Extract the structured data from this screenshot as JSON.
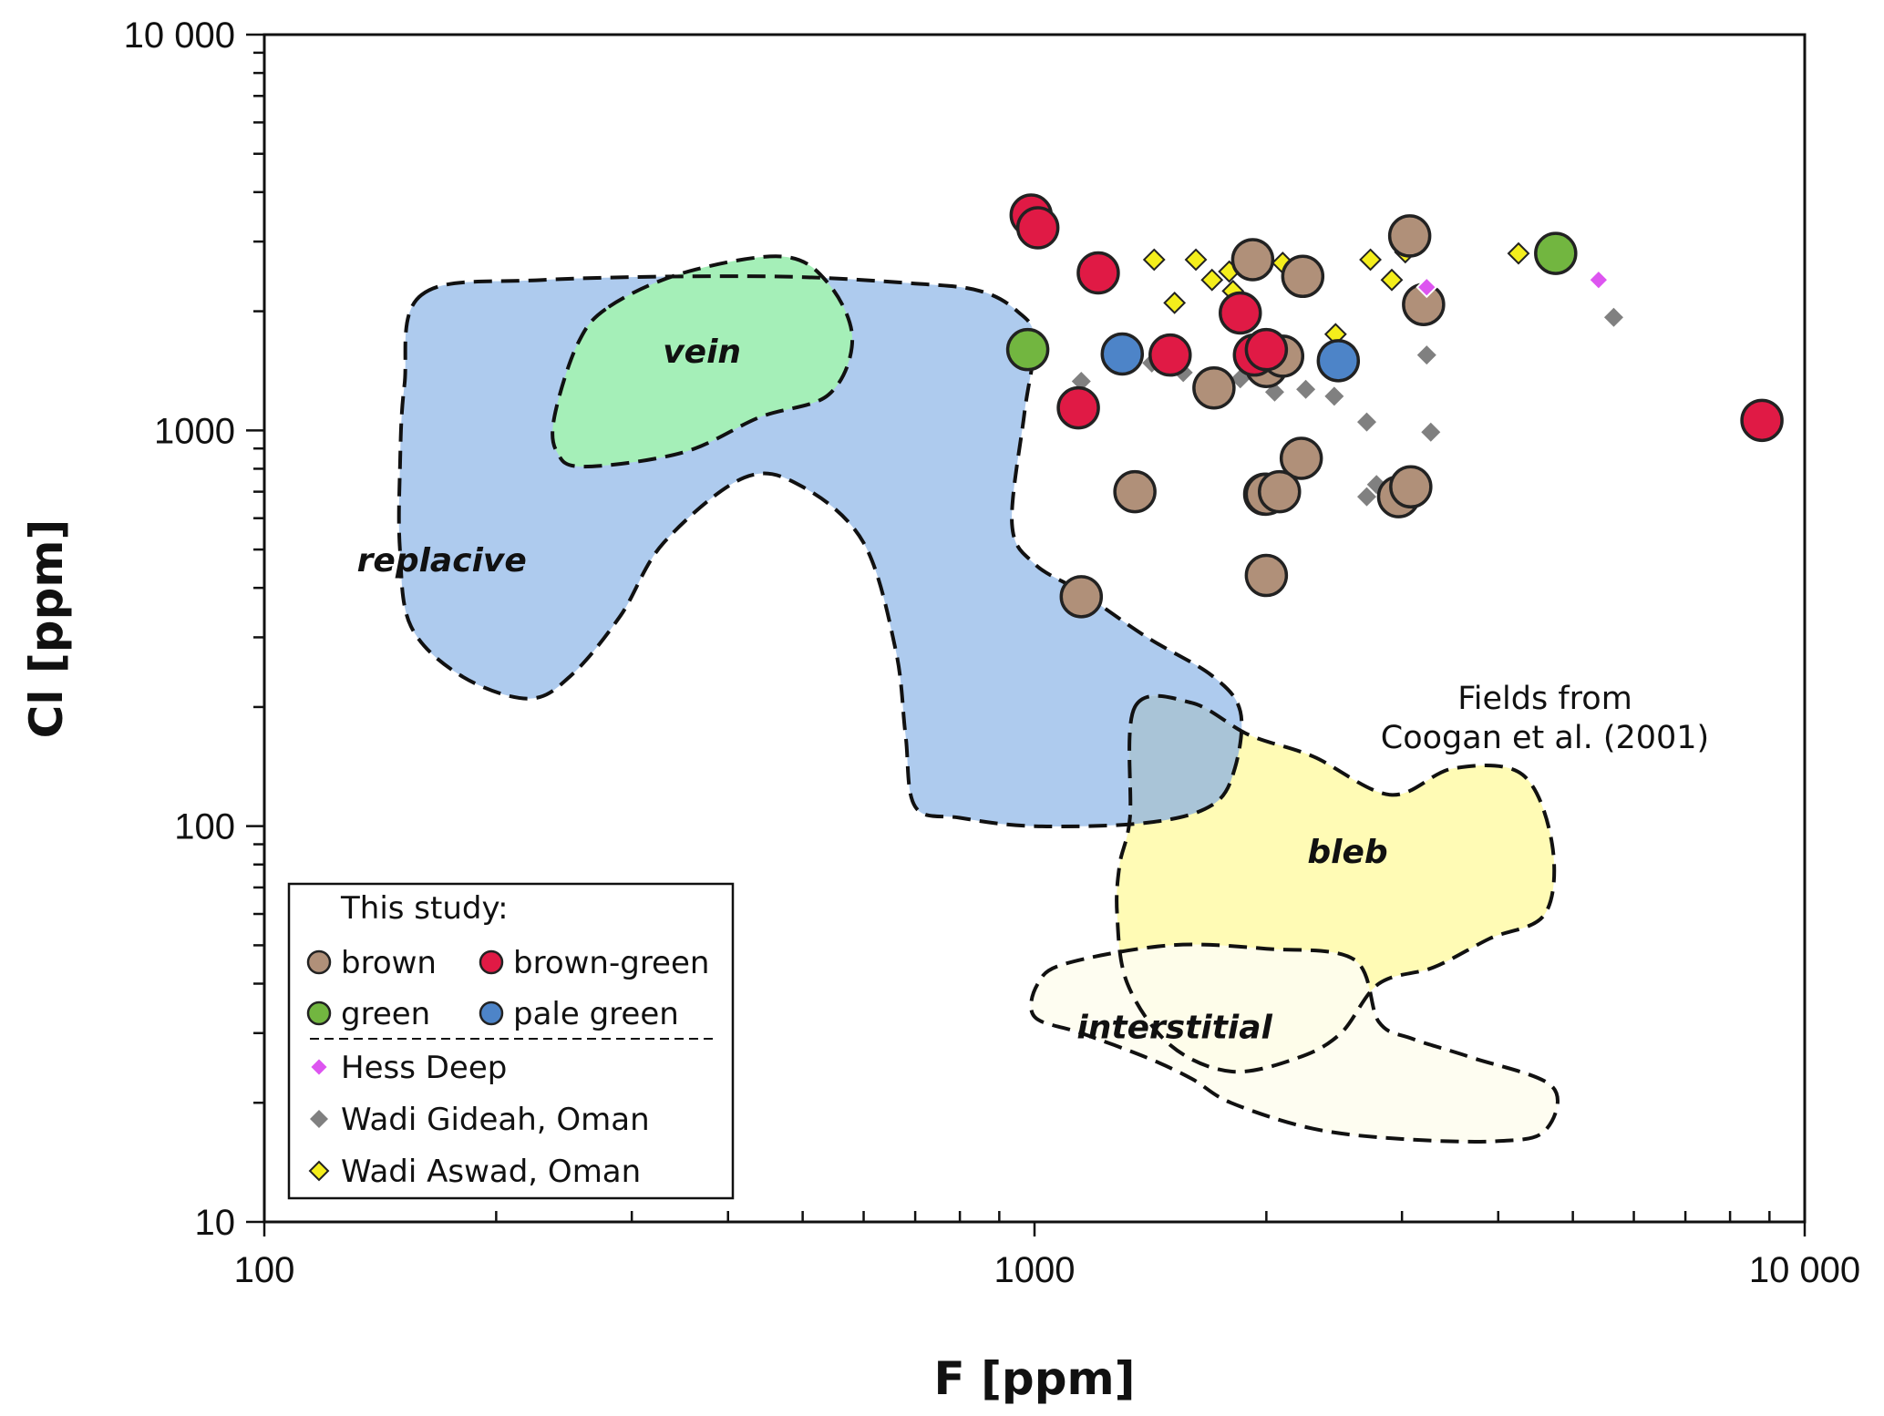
{
  "chart_data": {
    "type": "scatter",
    "xlabel": "F [ppm]",
    "ylabel": "Cl [ppm]",
    "xscale": "log",
    "yscale": "log",
    "xlim": [
      100,
      10000
    ],
    "ylim": [
      10,
      10000
    ],
    "xticks": [
      {
        "value": 100,
        "label": "100"
      },
      {
        "value": 1000,
        "label": "1000"
      },
      {
        "value": 10000,
        "label": "10 000"
      }
    ],
    "yticks": [
      {
        "value": 10,
        "label": "10"
      },
      {
        "value": 100,
        "label": "100"
      },
      {
        "value": 1000,
        "label": "1000"
      },
      {
        "value": 10000,
        "label": "10 000"
      }
    ],
    "grid": false,
    "legend_position": "bottom-left",
    "annotation": [
      "Fields from",
      "Coogan et al. (2001)"
    ],
    "fields": [
      {
        "name": "replacive",
        "fill": "#aecbee",
        "label_at": [
          170,
          470
        ],
        "outline": [
          [
            160,
            2200
          ],
          [
            230,
            2400
          ],
          [
            450,
            2450
          ],
          [
            700,
            2350
          ],
          [
            850,
            2250
          ],
          [
            950,
            2000
          ],
          [
            1000,
            1700
          ],
          [
            970,
            1100
          ],
          [
            935,
            580
          ],
          [
            1000,
            460
          ],
          [
            1150,
            390
          ],
          [
            1400,
            300
          ],
          [
            1700,
            240
          ],
          [
            1850,
            195
          ],
          [
            1820,
            140
          ],
          [
            1700,
            113
          ],
          [
            1400,
            102
          ],
          [
            1000,
            100
          ],
          [
            800,
            105
          ],
          [
            700,
            112
          ],
          [
            680,
            170
          ],
          [
            660,
            280
          ],
          [
            600,
            520
          ],
          [
            500,
            720
          ],
          [
            420,
            760
          ],
          [
            330,
            520
          ],
          [
            290,
            340
          ],
          [
            250,
            240
          ],
          [
            220,
            210
          ],
          [
            180,
            240
          ],
          [
            155,
            320
          ],
          [
            150,
            500
          ],
          [
            150,
            800
          ],
          [
            152,
            1300
          ]
        ]
      },
      {
        "name": "vein",
        "fill": "#a5efb8",
        "label_at": [
          370,
          1580
        ],
        "outline": [
          [
            280,
            2050
          ],
          [
            350,
            2500
          ],
          [
            470,
            2750
          ],
          [
            540,
            2350
          ],
          [
            580,
            1700
          ],
          [
            540,
            1230
          ],
          [
            440,
            1080
          ],
          [
            350,
            880
          ],
          [
            260,
            810
          ],
          [
            240,
            880
          ],
          [
            238,
            1080
          ],
          [
            255,
            1650
          ]
        ]
      },
      {
        "name": "bleb",
        "fill": "#fffbb5",
        "label_at": [
          2550,
          86
        ],
        "outline": [
          [
            1350,
            200
          ],
          [
            1600,
            205
          ],
          [
            1900,
            170
          ],
          [
            2300,
            150
          ],
          [
            2900,
            120
          ],
          [
            3500,
            140
          ],
          [
            4300,
            135
          ],
          [
            4700,
            90
          ],
          [
            4600,
            60
          ],
          [
            3900,
            52
          ],
          [
            3300,
            44
          ],
          [
            2800,
            40
          ],
          [
            2500,
            30
          ],
          [
            2200,
            26
          ],
          [
            1800,
            24
          ],
          [
            1500,
            28
          ],
          [
            1320,
            40
          ],
          [
            1280,
            60
          ],
          [
            1290,
            80
          ],
          [
            1330,
            105
          ]
        ]
      },
      {
        "name": "interstitial",
        "fill": "#fefdf0",
        "label_at": [
          1520,
          31
        ],
        "outline": [
          [
            1100,
            45
          ],
          [
            1500,
            50
          ],
          [
            2000,
            49
          ],
          [
            2600,
            46
          ],
          [
            2800,
            32
          ],
          [
            3100,
            29
          ],
          [
            3700,
            26
          ],
          [
            4700,
            22
          ],
          [
            4600,
            17
          ],
          [
            4000,
            16
          ],
          [
            3000,
            16.2
          ],
          [
            2300,
            17.2
          ],
          [
            1800,
            20
          ],
          [
            1600,
            23
          ],
          [
            1400,
            26
          ],
          [
            1150,
            30
          ],
          [
            1000,
            33
          ],
          [
            1010,
            40
          ]
        ]
      }
    ],
    "series": [
      {
        "name": "brown",
        "marker": "circle",
        "color": "#b09079",
        "x": [
          1920,
          2230,
          1710,
          2000,
          2100,
          1990,
          2220,
          1350,
          2000,
          2080,
          2970,
          3080,
          3070,
          3200,
          1150,
          2000
        ],
        "y": [
          2700,
          2450,
          1280,
          1450,
          1540,
          690,
          850,
          700,
          690,
          700,
          680,
          720,
          3100,
          2080,
          380,
          430
        ]
      },
      {
        "name": "brown-green",
        "marker": "circle",
        "color": "#e01a45",
        "x": [
          990,
          1010,
          1210,
          1500,
          1850,
          1930,
          2000,
          1140,
          8800
        ],
        "y": [
          3500,
          3250,
          2500,
          1550,
          1980,
          1550,
          1600,
          1140,
          1060
        ]
      },
      {
        "name": "green",
        "marker": "circle",
        "color": "#72b640",
        "x": [
          980,
          4750
        ],
        "y": [
          1600,
          2800
        ]
      },
      {
        "name": "pale green",
        "marker": "circle",
        "color": "#4d84c8",
        "x": [
          1300,
          2480
        ],
        "y": [
          1560,
          1500
        ]
      },
      {
        "name": "Hess Deep",
        "marker": "diamond",
        "color": "#dd55f0",
        "x": [
          3230,
          5400
        ],
        "y": [
          2300,
          2400
        ]
      },
      {
        "name": "Wadi Gideah, Oman",
        "marker": "diamond",
        "color": "#808080",
        "x": [
          1150,
          1420,
          1560,
          1850,
          1970,
          2050,
          2250,
          2450,
          2700,
          2780,
          2700,
          3230,
          3270,
          5650,
          2000
        ],
        "y": [
          1330,
          1480,
          1400,
          1350,
          1400,
          1250,
          1270,
          1220,
          1050,
          730,
          680,
          1550,
          990,
          1930,
          430
        ]
      },
      {
        "name": "Wadi Aswad, Oman",
        "marker": "diamond",
        "color": "#f4ee1c",
        "x": [
          1430,
          1520,
          1620,
          1700,
          1790,
          1810,
          2100,
          2460,
          2730,
          2910,
          3030,
          4250
        ],
        "y": [
          2700,
          2100,
          2700,
          2400,
          2520,
          2250,
          2650,
          1750,
          2700,
          2400,
          2820,
          2800
        ]
      }
    ],
    "legend": {
      "title": "This study:",
      "entries": [
        {
          "series": "brown",
          "label": "brown"
        },
        {
          "series": "brown-green",
          "label": "brown-green"
        },
        {
          "series": "green",
          "label": "green"
        },
        {
          "series": "pale green",
          "label": "pale green"
        },
        {
          "series": "Hess Deep",
          "label": "Hess Deep"
        },
        {
          "series": "Wadi Gideah, Oman",
          "label": "Wadi Gideah, Oman"
        },
        {
          "series": "Wadi Aswad, Oman",
          "label": "Wadi Aswad, Oman"
        }
      ]
    }
  }
}
